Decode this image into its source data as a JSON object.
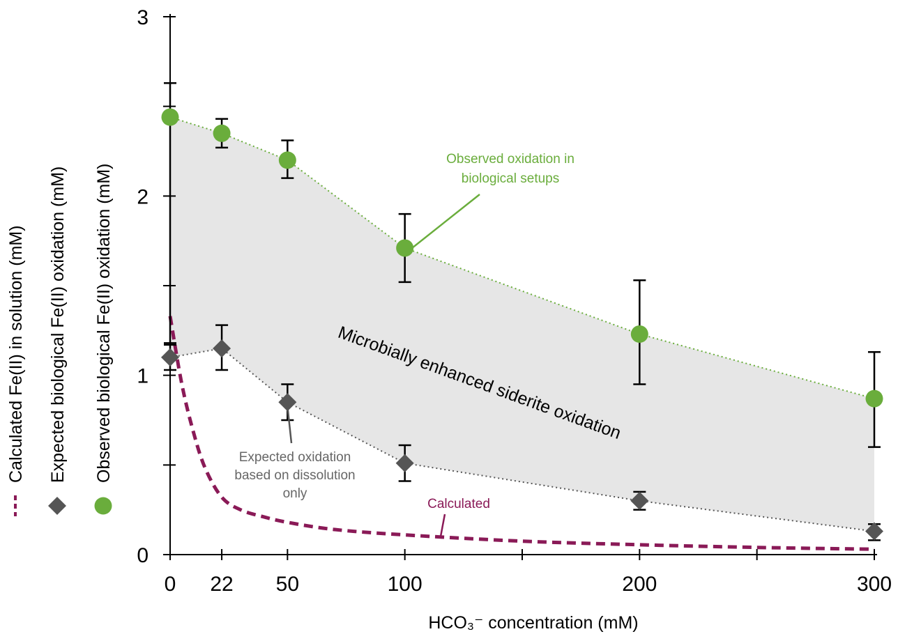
{
  "chart_data": {
    "type": "line",
    "title": "",
    "xlabel": "HCO₃⁻ concentration (mM)",
    "ylabel": "",
    "xlim": [
      0,
      300
    ],
    "ylim": [
      0,
      3
    ],
    "x_ticks": [
      0,
      22,
      50,
      100,
      200,
      300
    ],
    "x_minor_ticks": [
      150,
      250
    ],
    "y_ticks": [
      0,
      1,
      2,
      3
    ],
    "y_minor_ticks": [
      0.5,
      1.5,
      2.5
    ],
    "grid": false,
    "legend_position": "left (rotated vertical)",
    "x": [
      0,
      22,
      50,
      100,
      200,
      300
    ],
    "series": [
      {
        "name": "Observed biological Fe(II) oxidation (mM)",
        "marker": "circle",
        "color": "#6aad3c",
        "line_style": "dotted",
        "x": [
          0,
          22,
          50,
          100,
          200,
          300
        ],
        "values": [
          2.44,
          2.35,
          2.2,
          1.71,
          1.23,
          0.87
        ],
        "err_low": [
          1.18,
          2.27,
          2.1,
          1.52,
          0.95,
          0.6
        ],
        "err_high": [
          2.63,
          2.43,
          2.31,
          1.9,
          1.53,
          1.13
        ]
      },
      {
        "name": "Expected biological Fe(II) oxidation (mM)",
        "marker": "diamond",
        "color": "#555555",
        "line_style": "dotted",
        "x": [
          0,
          22,
          50,
          100,
          200,
          300
        ],
        "values": [
          1.1,
          1.15,
          0.85,
          0.51,
          0.3,
          0.13
        ],
        "err_low": [
          1.03,
          1.03,
          0.75,
          0.41,
          0.25,
          0.08
        ],
        "err_high": [
          1.17,
          1.28,
          0.95,
          0.61,
          0.35,
          0.17
        ]
      },
      {
        "name": "Calculated Fe(II) in solution (mM)",
        "marker": "none",
        "color": "#8a1a57",
        "line_style": "dashed",
        "x": [
          0,
          5,
          10,
          15,
          22,
          30,
          40,
          50,
          70,
          100,
          150,
          200,
          250,
          300
        ],
        "values": [
          1.33,
          0.95,
          0.68,
          0.48,
          0.32,
          0.25,
          0.21,
          0.18,
          0.14,
          0.11,
          0.075,
          0.055,
          0.04,
          0.03
        ]
      }
    ],
    "legend": [
      {
        "label": "Calculated Fe(II) in solution (mM)",
        "marker": "dashed-line",
        "color": "#8a1a57"
      },
      {
        "label": "Expected biological Fe(II) oxidation (mM)",
        "marker": "diamond",
        "color": "#555555"
      },
      {
        "label": "Observed biological Fe(II) oxidation (mM)",
        "marker": "circle",
        "color": "#6aad3c"
      }
    ],
    "annotations": {
      "observed_label": [
        "Observed oxidation in",
        "biological setups"
      ],
      "expected_label": [
        "Expected oxidation",
        "based on dissolution",
        "only"
      ],
      "calculated_label": "Calculated",
      "region_label": "Microbially enhanced siderite oxidation"
    },
    "colors": {
      "observed": "#6aad3c",
      "expected": "#555555",
      "calculated": "#8a1a57",
      "region_fill": "#e6e6e6",
      "axis": "#000000"
    }
  }
}
